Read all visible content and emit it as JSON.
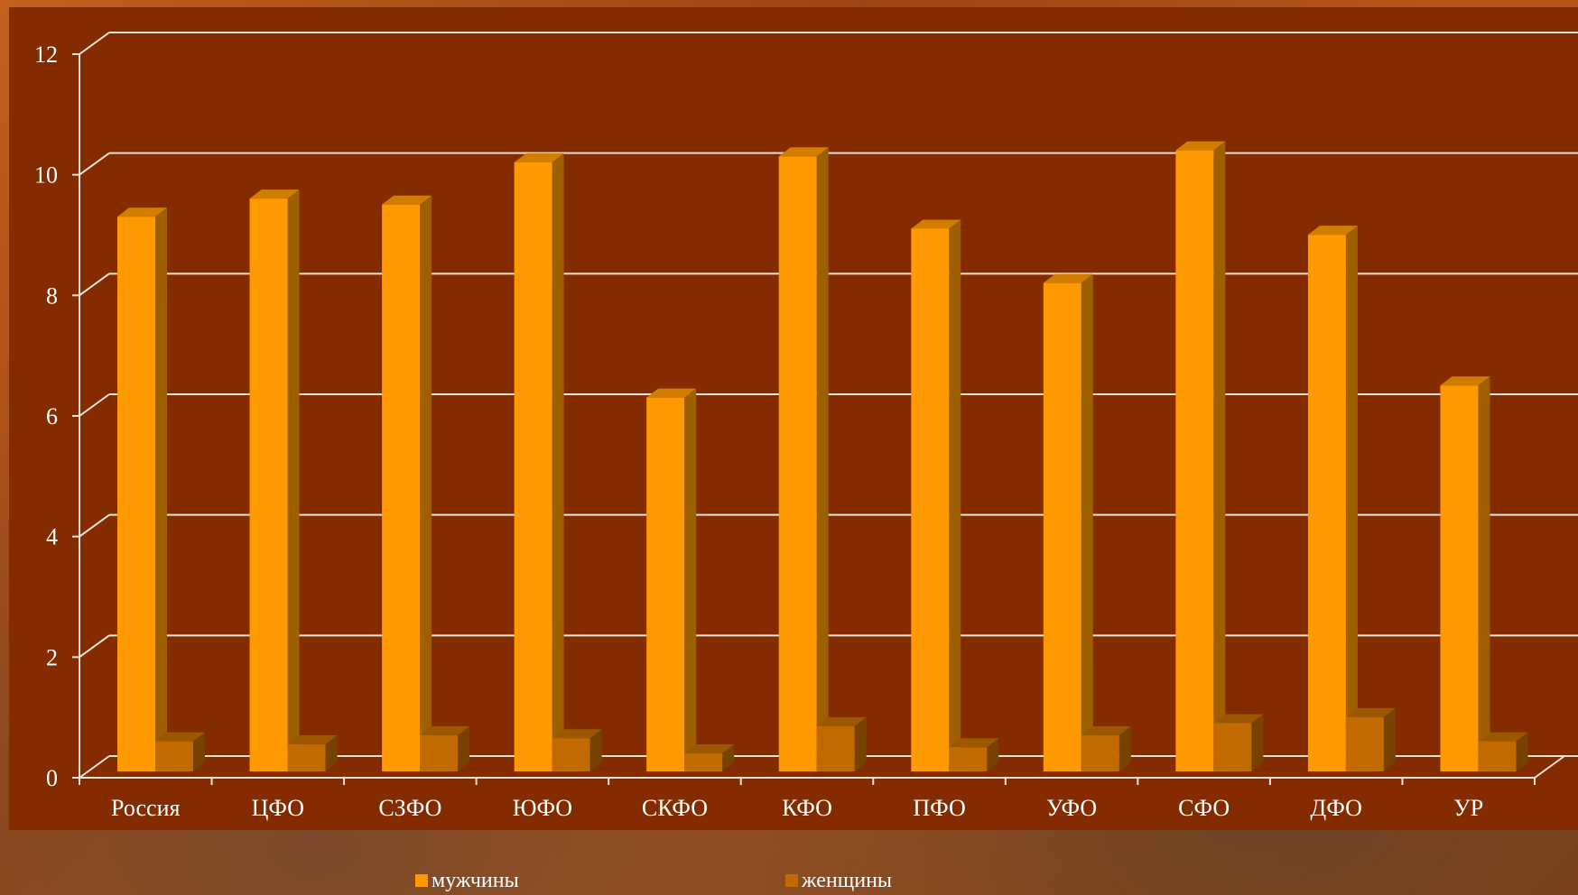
{
  "chart_data": {
    "type": "bar",
    "categories": [
      "Россия",
      "ЦФО",
      "СЗФО",
      "ЮФО",
      "СКФО",
      "КФО",
      "ПФО",
      "УФО",
      "СФО",
      "ДФО",
      "УР"
    ],
    "series": [
      {
        "name": "мужчины",
        "color": "#ff9900",
        "values": [
          9.2,
          9.5,
          9.4,
          10.1,
          6.2,
          10.2,
          9.0,
          8.1,
          10.3,
          8.9,
          6.4
        ]
      },
      {
        "name": "женщины",
        "color": "#c06a00",
        "values": [
          0.5,
          0.45,
          0.6,
          0.55,
          0.3,
          0.75,
          0.4,
          0.6,
          0.8,
          0.9,
          0.5
        ]
      }
    ],
    "y_ticks": [
      "0",
      "2",
      "4",
      "6",
      "8",
      "10",
      "12"
    ],
    "ylim": [
      0,
      12
    ],
    "grid": true,
    "legend_position": "bottom",
    "title": "",
    "xlabel": "",
    "ylabel": "",
    "colors": {
      "plot_background": "#842b00",
      "gridline": "#f2e6dc",
      "text": "#ffffff"
    }
  }
}
